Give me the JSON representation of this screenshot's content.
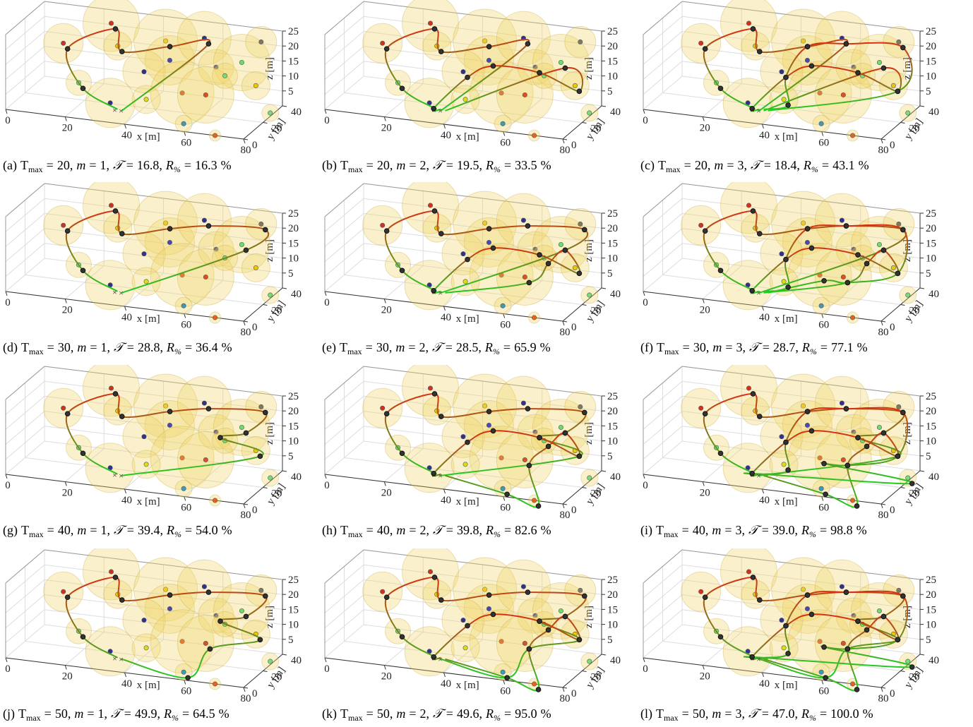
{
  "axes": {
    "x_label": "x [m]",
    "y_label": "y [m]",
    "z_label": "z [m]",
    "xlim": [
      0,
      80
    ],
    "xticks": [
      0,
      20,
      40,
      60,
      80
    ],
    "ylim": [
      0,
      40
    ],
    "yticks": [
      0,
      20,
      40
    ],
    "zlim": [
      0,
      25
    ],
    "zticks": [
      5,
      10,
      15,
      20,
      25
    ]
  },
  "caption_symbols": {
    "tmax": "T",
    "tmax_sub": "max",
    "m": "m",
    "time": "𝒯",
    "reward": "R",
    "reward_sub": "%",
    "equals": "=",
    "separator": ",",
    "unit": "%"
  },
  "panels": [
    {
      "label": "(a)",
      "t_max": "20",
      "m": "1",
      "time": "16.8",
      "reward": "16.3"
    },
    {
      "label": "(b)",
      "t_max": "20",
      "m": "2",
      "time": "19.5",
      "reward": "33.5"
    },
    {
      "label": "(c)",
      "t_max": "20",
      "m": "3",
      "time": "18.4",
      "reward": "43.1"
    },
    {
      "label": "(d)",
      "t_max": "30",
      "m": "1",
      "time": "28.8",
      "reward": "36.4"
    },
    {
      "label": "(e)",
      "t_max": "30",
      "m": "2",
      "time": "28.5",
      "reward": "65.9"
    },
    {
      "label": "(f)",
      "t_max": "30",
      "m": "3",
      "time": "28.7",
      "reward": "77.1"
    },
    {
      "label": "(g)",
      "t_max": "40",
      "m": "1",
      "time": "39.4",
      "reward": "54.0"
    },
    {
      "label": "(h)",
      "t_max": "40",
      "m": "2",
      "time": "39.8",
      "reward": "82.6"
    },
    {
      "label": "(i)",
      "t_max": "40",
      "m": "3",
      "time": "39.0",
      "reward": "98.8"
    },
    {
      "label": "(j)",
      "t_max": "50",
      "m": "1",
      "time": "49.9",
      "reward": "64.5"
    },
    {
      "label": "(k)",
      "t_max": "50",
      "m": "2",
      "time": "49.6",
      "reward": "95.0"
    },
    {
      "label": "(l)",
      "t_max": "50",
      "m": "3",
      "time": "47.0",
      "reward": "100.0"
    }
  ]
}
